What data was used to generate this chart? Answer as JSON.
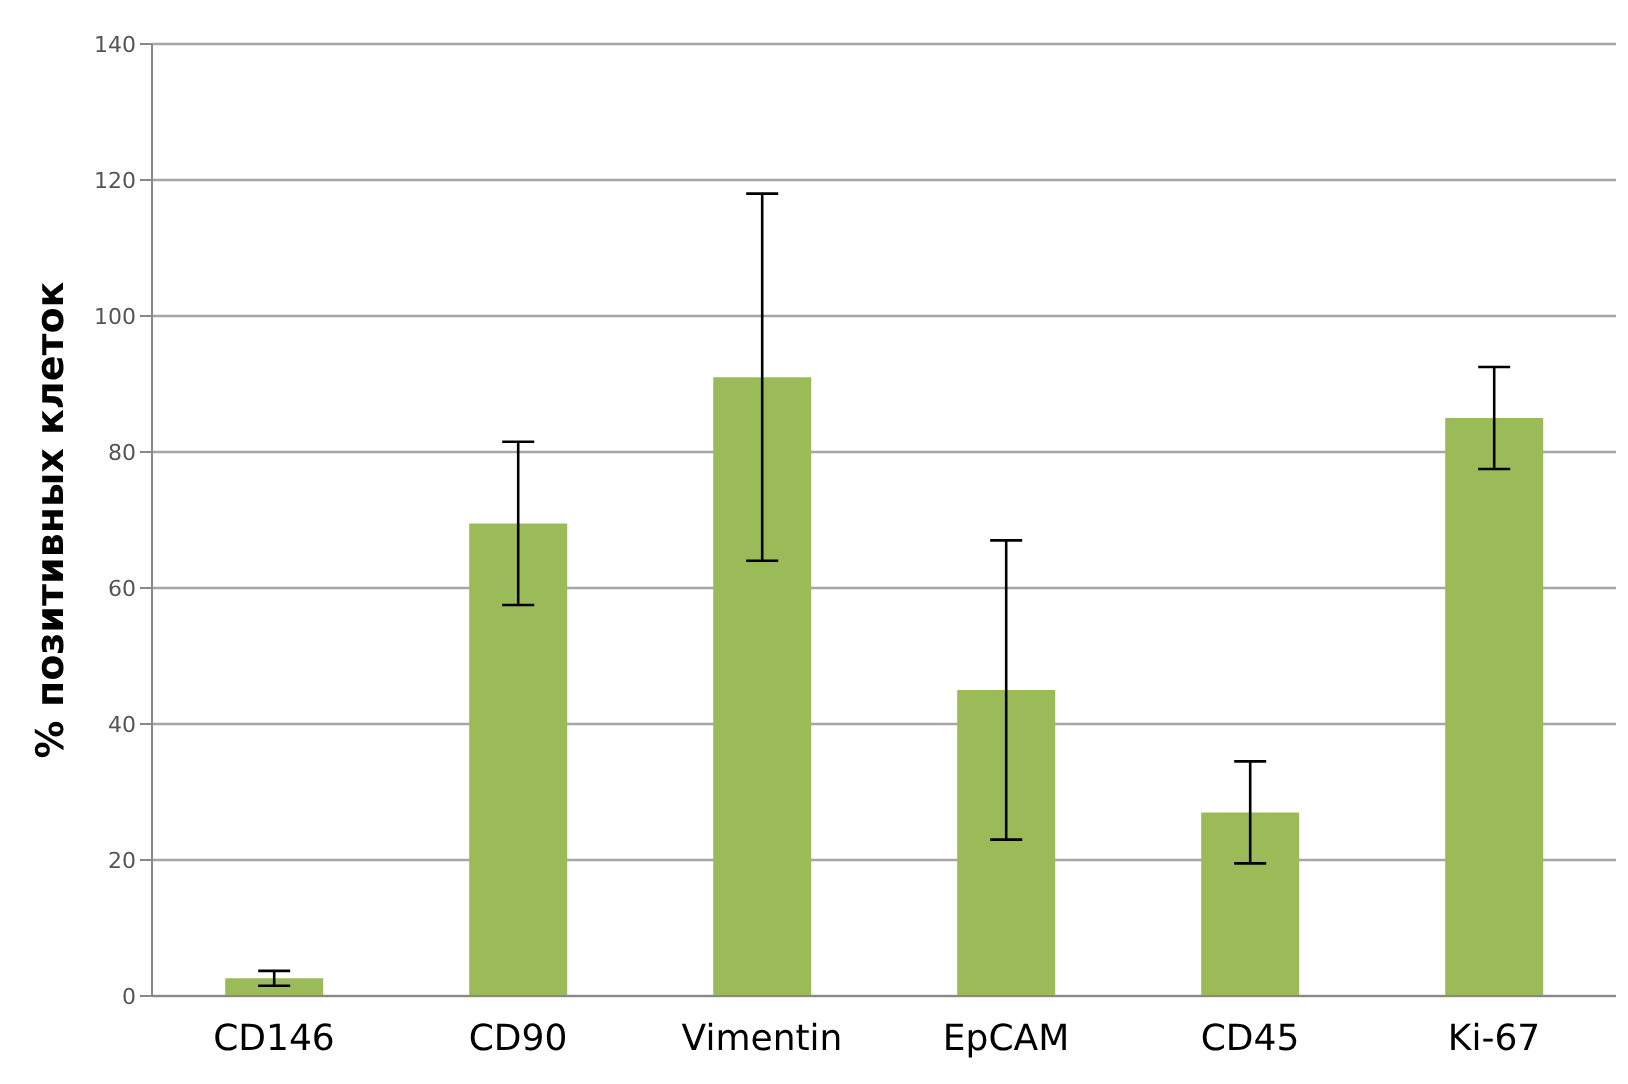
{
  "chart_data": {
    "type": "bar",
    "ylabel": "% позитивных клеток",
    "categories": [
      "CD146",
      "CD90",
      "Vimentin",
      "EpCAM",
      "CD45",
      "Ki-67"
    ],
    "values": [
      2.6,
      69.5,
      91,
      45,
      27,
      85
    ],
    "errors": [
      1.1,
      12,
      27,
      22,
      7.5,
      7.5
    ],
    "color": "#9bbb59",
    "ylim": [
      0,
      140
    ],
    "yticks": [
      0,
      20,
      40,
      60,
      80,
      100,
      120,
      140
    ],
    "grid": "y",
    "legend": false
  }
}
